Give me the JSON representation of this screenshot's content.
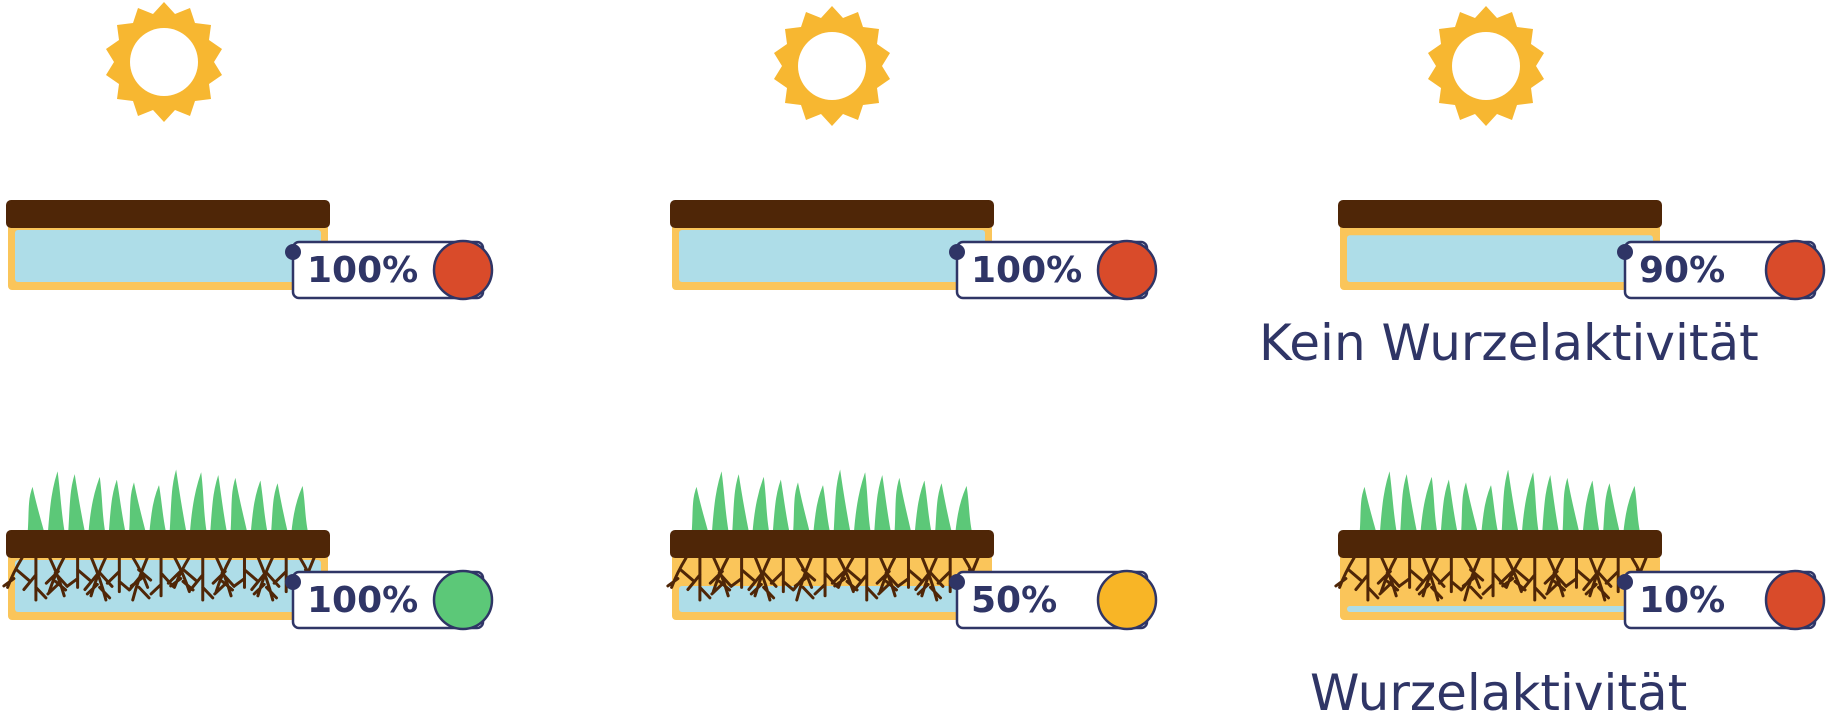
{
  "colors": {
    "sun": "#f7b731",
    "soil": "#4f2607",
    "water": "#aedde8",
    "container": "#fac55a",
    "grass": "#5cc878",
    "text": "#2f3566",
    "status_red": "#d94b2a",
    "status_green": "#5cc878",
    "status_yellow": "#f8b526"
  },
  "panels": [
    {
      "id": "top-1",
      "row": "top",
      "percent": "100%",
      "status_color": "status_red",
      "water_level": 1.0,
      "has_grass": false
    },
    {
      "id": "top-2",
      "row": "top",
      "percent": "100%",
      "status_color": "status_red",
      "water_level": 1.0,
      "has_grass": false
    },
    {
      "id": "top-3",
      "row": "top",
      "percent": "90%",
      "status_color": "status_red",
      "water_level": 0.9,
      "has_grass": false
    },
    {
      "id": "bottom-1",
      "row": "bottom",
      "percent": "100%",
      "status_color": "status_green",
      "water_level": 1.0,
      "has_grass": true
    },
    {
      "id": "bottom-2",
      "row": "bottom",
      "percent": "50%",
      "status_color": "status_yellow",
      "water_level": 0.5,
      "has_grass": true
    },
    {
      "id": "bottom-3",
      "row": "bottom",
      "percent": "10%",
      "status_color": "status_red",
      "water_level": 0.1,
      "has_grass": true
    }
  ],
  "captions": {
    "top": "Kein Wurzelaktivität",
    "bottom": "Wurzelaktivität"
  },
  "icons": [
    "sun-icon",
    "sun-icon",
    "sun-icon"
  ]
}
